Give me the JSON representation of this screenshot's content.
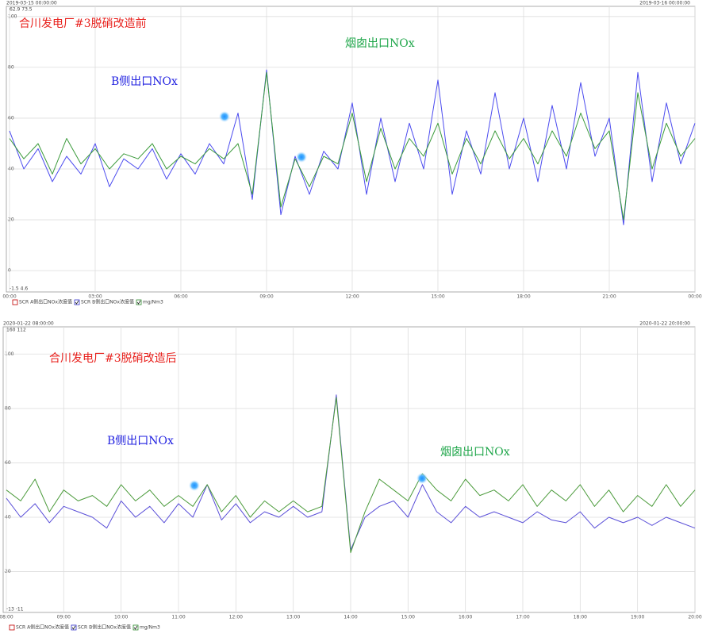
{
  "chart_data": [
    {
      "type": "line",
      "title": "合川发电厂#3脱硝改造前",
      "start_label": "2019-03-15 00:00:00",
      "end_label": "2019-03-16 00:00:00",
      "scale_top": "62.9  73.5",
      "scale_bottom": "-1.5  4.6",
      "x": [
        0,
        0.5,
        1,
        1.5,
        2,
        2.5,
        3,
        3.5,
        4,
        4.5,
        5,
        5.5,
        6,
        6.5,
        7,
        7.5,
        8,
        8.5,
        9,
        9.5,
        10,
        10.5,
        11,
        11.5,
        12,
        12.5,
        13,
        13.5,
        14,
        14.5,
        15,
        15.5,
        16,
        16.5,
        17,
        17.5,
        18,
        18.5,
        19,
        19.5,
        20,
        20.5,
        21,
        21.5,
        22,
        22.5,
        23,
        23.5,
        24
      ],
      "series": [
        {
          "name": "B侧出口NOx",
          "color": "#4b4bef",
          "values": [
            55,
            40,
            48,
            35,
            45,
            38,
            50,
            33,
            44,
            40,
            48,
            36,
            46,
            38,
            50,
            42,
            62,
            28,
            79,
            22,
            45,
            30,
            47,
            40,
            66,
            30,
            60,
            35,
            58,
            40,
            75,
            30,
            55,
            38,
            70,
            40,
            60,
            35,
            65,
            40,
            74,
            45,
            60,
            18,
            78,
            35,
            66,
            42,
            58
          ]
        },
        {
          "name": "烟囱出口NOx",
          "color": "#3a9a3a",
          "values": [
            52,
            44,
            50,
            38,
            52,
            42,
            48,
            40,
            46,
            44,
            50,
            40,
            45,
            42,
            48,
            44,
            50,
            30,
            78,
            25,
            44,
            33,
            45,
            42,
            62,
            35,
            56,
            40,
            52,
            45,
            58,
            38,
            52,
            42,
            55,
            44,
            52,
            42,
            55,
            45,
            62,
            48,
            55,
            20,
            70,
            40,
            58,
            45,
            52
          ]
        }
      ],
      "xlim": [
        0,
        24
      ],
      "xticks": [
        {
          "value": 0,
          "label": "00:00"
        },
        {
          "value": 3,
          "label": "03:00"
        },
        {
          "value": 6,
          "label": "06:00"
        },
        {
          "value": 9,
          "label": "09:00"
        },
        {
          "value": 12,
          "label": "12:00"
        },
        {
          "value": 15,
          "label": "15:00"
        },
        {
          "value": 18,
          "label": "18:00"
        },
        {
          "value": 21,
          "label": "21:00"
        },
        {
          "value": 24,
          "label": "00:00"
        }
      ],
      "ylim": [
        -8.4,
        104
      ],
      "yticks": [
        0,
        20,
        40,
        60,
        80,
        100
      ],
      "grid": true,
      "legend": [
        {
          "label": "SCR A侧出口NOx浓度值",
          "color": "#c00000",
          "checked": false
        },
        {
          "label": "SCR B侧出口NOx浓度值",
          "color": "#3333cc",
          "checked": true
        },
        {
          "label": "mg/Nm3",
          "color": "#2e8b2e",
          "checked": true
        }
      ]
    },
    {
      "type": "line",
      "title": "合川发电厂#3脱硝改造后",
      "start_label": "2020-01-22 08:00:00",
      "end_label": "2020-01-22 20:00:00",
      "scale_top": "160  112",
      "scale_bottom": "-13  -11",
      "x": [
        8,
        8.25,
        8.5,
        8.75,
        9,
        9.25,
        9.5,
        9.75,
        10,
        10.25,
        10.5,
        10.75,
        11,
        11.25,
        11.5,
        11.75,
        12,
        12.25,
        12.5,
        12.75,
        13,
        13.25,
        13.5,
        13.75,
        14,
        14.25,
        14.5,
        14.75,
        15,
        15.25,
        15.5,
        15.75,
        16,
        16.25,
        16.5,
        16.75,
        17,
        17.25,
        17.5,
        17.75,
        18,
        18.25,
        18.5,
        18.75,
        19,
        19.25,
        19.5,
        19.75,
        20
      ],
      "series": [
        {
          "name": "B侧出口NOx",
          "color": "#5a4fd8",
          "values": [
            47,
            40,
            45,
            38,
            44,
            42,
            40,
            36,
            46,
            40,
            44,
            38,
            45,
            40,
            52,
            39,
            45,
            38,
            42,
            40,
            44,
            40,
            42,
            85,
            28,
            40,
            44,
            46,
            40,
            52,
            42,
            38,
            44,
            40,
            42,
            40,
            38,
            42,
            39,
            38,
            42,
            36,
            40,
            38,
            40,
            37,
            40,
            38,
            36
          ]
        },
        {
          "name": "烟囱出口NOx",
          "color": "#4a9a3a",
          "values": [
            50,
            46,
            54,
            42,
            50,
            46,
            48,
            44,
            52,
            46,
            50,
            44,
            48,
            44,
            52,
            42,
            48,
            40,
            46,
            42,
            46,
            42,
            44,
            84,
            27,
            42,
            54,
            50,
            46,
            56,
            50,
            46,
            54,
            48,
            50,
            46,
            52,
            44,
            50,
            46,
            52,
            44,
            50,
            42,
            48,
            44,
            52,
            44,
            50
          ]
        }
      ],
      "xlim": [
        8,
        20
      ],
      "xticks": [
        {
          "value": 8,
          "label": "08:00"
        },
        {
          "value": 9,
          "label": "09:00"
        },
        {
          "value": 10,
          "label": "10:00"
        },
        {
          "value": 11,
          "label": "11:00"
        },
        {
          "value": 12,
          "label": "12:00"
        },
        {
          "value": 13,
          "label": "13:00"
        },
        {
          "value": 14,
          "label": "14:00"
        },
        {
          "value": 15,
          "label": "15:00"
        },
        {
          "value": 16,
          "label": "16:00"
        },
        {
          "value": 17,
          "label": "17:00"
        },
        {
          "value": 18,
          "label": "18:00"
        },
        {
          "value": 19,
          "label": "19:00"
        },
        {
          "value": 20,
          "label": "20:00"
        }
      ],
      "ylim": [
        5,
        110
      ],
      "yticks": [
        20,
        40,
        60,
        80,
        100
      ],
      "grid": true,
      "legend": [
        {
          "label": "SCR A侧出口NOx浓度值",
          "color": "#c00000",
          "checked": false
        },
        {
          "label": "SCR B侧出口NOx浓度值",
          "color": "#3333cc",
          "checked": true
        },
        {
          "label": "mg/Nm3",
          "color": "#2e8b2e",
          "checked": true
        }
      ]
    }
  ]
}
